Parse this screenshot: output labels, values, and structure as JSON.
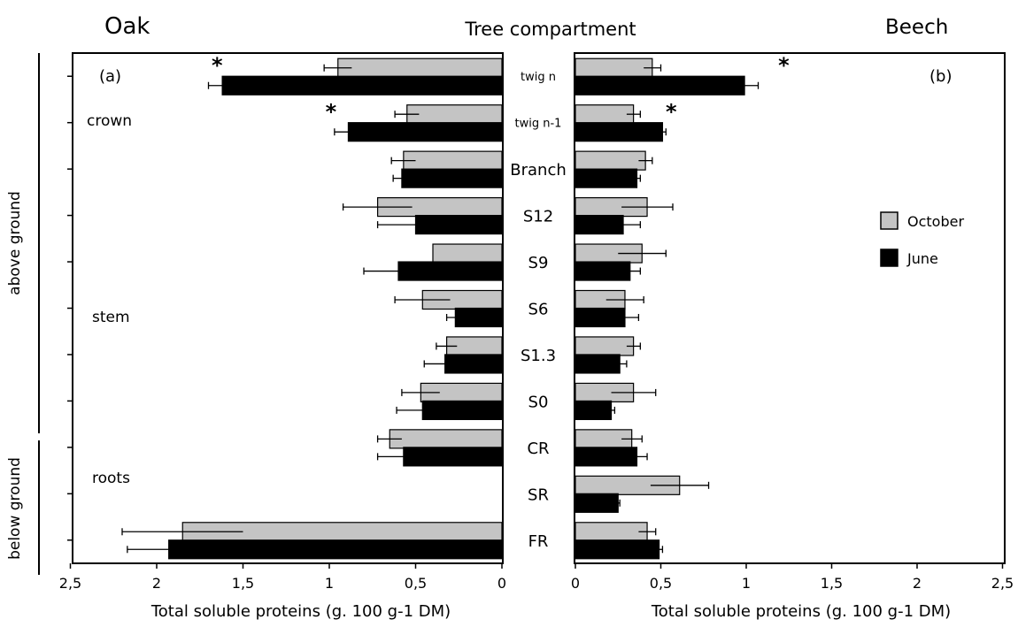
{
  "header": {
    "left_title": "Oak",
    "center_title": "Tree compartment",
    "right_title": "Beech"
  },
  "groups": {
    "above": "above ground",
    "below": "below ground"
  },
  "legend": {
    "october": "October",
    "june": "June",
    "october_color": "#c4c4c4",
    "june_color": "#000000"
  },
  "chart_data": [
    {
      "type": "bar",
      "orientation": "horizontal",
      "panel_label": "(a)",
      "species": "Oak",
      "x_direction": "reversed",
      "categories": [
        "twig n",
        "twig n-1",
        "Branch",
        "S12",
        "S9",
        "S6",
        "S1.3",
        "S0",
        "CR",
        "SR",
        "FR"
      ],
      "section_labels": {
        "crown": "crown",
        "stem": "stem",
        "roots": "roots"
      },
      "series": [
        {
          "name": "October",
          "values": [
            0.95,
            0.55,
            0.57,
            0.72,
            0.4,
            0.46,
            0.32,
            0.47,
            0.65,
            0.0,
            1.85
          ],
          "errors": [
            0.08,
            0.07,
            0.07,
            0.2,
            0.0,
            0.16,
            0.06,
            0.11,
            0.07,
            0.0,
            0.35
          ]
        },
        {
          "name": "June",
          "values": [
            1.62,
            0.89,
            0.58,
            0.5,
            0.6,
            0.27,
            0.33,
            0.46,
            0.57,
            0.0,
            1.93
          ],
          "errors": [
            0.08,
            0.08,
            0.05,
            0.22,
            0.2,
            0.05,
            0.12,
            0.15,
            0.15,
            0.0,
            0.24
          ]
        }
      ],
      "significance": [
        "*",
        "*",
        "",
        "",
        "",
        "",
        "",
        "",
        "",
        "",
        ""
      ],
      "xlabel": "Total soluble proteins (g. 100 g-1 DM)",
      "xlim": [
        0,
        2.5
      ],
      "xticks": [
        "0",
        "0,5",
        "1",
        "1,5",
        "2",
        "2,5"
      ]
    },
    {
      "type": "bar",
      "orientation": "horizontal",
      "panel_label": "(b)",
      "species": "Beech",
      "categories": [
        "twig n",
        "twig n-1",
        "Branch",
        "S12",
        "S9",
        "S6",
        "S1.3",
        "S0",
        "CR",
        "SR",
        "FR"
      ],
      "category_labels": [
        "twig n",
        "twig n-1",
        "Branch",
        "S12",
        "S9",
        "S6",
        "S1.3",
        "S0",
        "CR",
        "SR",
        "FR"
      ],
      "series": [
        {
          "name": "October",
          "values": [
            0.45,
            0.34,
            0.41,
            0.42,
            0.39,
            0.29,
            0.34,
            0.34,
            0.33,
            0.61,
            0.42
          ],
          "errors": [
            0.05,
            0.04,
            0.04,
            0.15,
            0.14,
            0.11,
            0.04,
            0.13,
            0.06,
            0.17,
            0.05
          ]
        },
        {
          "name": "June",
          "values": [
            0.99,
            0.51,
            0.36,
            0.28,
            0.32,
            0.29,
            0.26,
            0.21,
            0.36,
            0.25,
            0.49
          ],
          "errors": [
            0.08,
            0.02,
            0.02,
            0.1,
            0.06,
            0.08,
            0.04,
            0.02,
            0.06,
            0.01,
            0.02
          ]
        }
      ],
      "significance": [
        "*",
        "*",
        "",
        "",
        "",
        "",
        "",
        "",
        "",
        "",
        ""
      ],
      "xlabel": "Total soluble proteins (g. 100 g-1 DM)",
      "xlim": [
        0,
        2.5
      ],
      "xticks": [
        "0",
        "0,5",
        "1",
        "1,5",
        "2",
        "2,5"
      ]
    }
  ]
}
